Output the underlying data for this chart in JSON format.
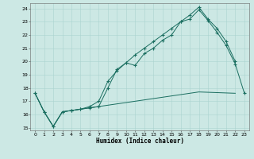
{
  "xlabel": "Humidex (Indice chaleur)",
  "background_color": "#cce8e4",
  "grid_color": "#aad4d0",
  "line_color": "#1a6e60",
  "xlim": [
    -0.5,
    23.5
  ],
  "ylim": [
    14.8,
    24.4
  ],
  "xticks": [
    0,
    1,
    2,
    3,
    4,
    5,
    6,
    7,
    8,
    9,
    10,
    11,
    12,
    13,
    14,
    15,
    16,
    17,
    18,
    19,
    20,
    21,
    22,
    23
  ],
  "yticks": [
    15,
    16,
    17,
    18,
    19,
    20,
    21,
    22,
    23,
    24
  ],
  "curve1_x": [
    0,
    1,
    2,
    3,
    4,
    5,
    6,
    7,
    8,
    9,
    10,
    11,
    12,
    13,
    14,
    15,
    16,
    17,
    18,
    19,
    20,
    21,
    22,
    23
  ],
  "curve1_y": [
    17.6,
    16.2,
    15.1,
    16.2,
    16.3,
    16.4,
    16.5,
    16.6,
    18.0,
    19.4,
    19.9,
    19.7,
    20.6,
    21.0,
    21.6,
    22.0,
    23.0,
    23.2,
    23.9,
    23.1,
    22.2,
    21.2,
    19.8,
    17.6
  ],
  "curve2_x": [
    0,
    1,
    2,
    3,
    4,
    5,
    6,
    7,
    8,
    9,
    10,
    11,
    12,
    13,
    14,
    15,
    16,
    17,
    18,
    19,
    20,
    21,
    22
  ],
  "curve2_y": [
    17.6,
    16.2,
    15.1,
    16.2,
    16.3,
    16.4,
    16.6,
    17.0,
    18.5,
    19.3,
    19.9,
    20.5,
    21.0,
    21.5,
    22.0,
    22.5,
    23.0,
    23.5,
    24.1,
    23.2,
    22.5,
    21.5,
    20.0
  ],
  "curve3_x": [
    0,
    1,
    2,
    3,
    4,
    5,
    6,
    7,
    8,
    9,
    10,
    11,
    12,
    13,
    14,
    15,
    16,
    17,
    18,
    22
  ],
  "curve3_y": [
    17.6,
    16.2,
    15.1,
    16.2,
    16.3,
    16.4,
    16.5,
    16.6,
    16.7,
    16.8,
    16.9,
    17.0,
    17.1,
    17.2,
    17.3,
    17.4,
    17.5,
    17.6,
    17.7,
    17.6
  ]
}
